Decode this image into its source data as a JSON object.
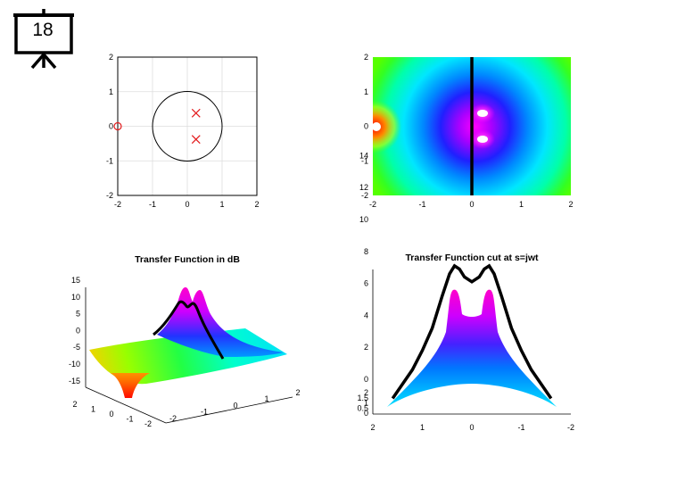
{
  "slide": {
    "number": "18"
  },
  "chart_data": [
    {
      "id": "pole-zero",
      "type": "scatter",
      "title": "",
      "xlabel": "",
      "ylabel": "",
      "xlim": [
        -2,
        2
      ],
      "ylim": [
        -2,
        2
      ],
      "grid": true,
      "xticks": [
        "-2",
        "-1",
        "0",
        "1",
        "2"
      ],
      "yticks": [
        "2",
        "1",
        "0",
        "-1",
        "-2"
      ],
      "unit_circle": true,
      "poles": [
        {
          "re": 0.25,
          "im": 0.38
        },
        {
          "re": 0.25,
          "im": -0.38
        }
      ],
      "zeros": [
        {
          "re": -2,
          "im": 0
        }
      ],
      "colors": {
        "marker": "#e31a1c",
        "circle": "#000000",
        "grid": "#dddddd"
      }
    },
    {
      "id": "s-plane-magnitude",
      "type": "heatmap",
      "title": "",
      "xlim": [
        -2,
        2
      ],
      "ylim": [
        -2,
        2
      ],
      "xticks": [
        "-2",
        "-1",
        "0",
        "1",
        "2"
      ],
      "yticks": [
        "2",
        "1",
        "0",
        "-1",
        "-2"
      ],
      "colormap": "hsv",
      "jw_axis_line": {
        "re": 0
      }
    },
    {
      "id": "transfer-function-db",
      "type": "area",
      "title": "Transfer Function in dB",
      "view": "3d",
      "zticks": [
        "15",
        "10",
        "5",
        "0",
        "-5",
        "-10",
        "-15"
      ],
      "yticks": [
        "2",
        "1",
        "0",
        "-1",
        "-2"
      ],
      "xticks": [
        "-2",
        "-1",
        "0",
        "1",
        "2"
      ],
      "colormap": "hsv"
    },
    {
      "id": "transfer-function-jw",
      "type": "line",
      "title": "Transfer Function cut at s=jwt",
      "xlim": [
        2,
        -2
      ],
      "xticks": [
        "2",
        "1",
        "0",
        "-1",
        "-2"
      ],
      "yticks": [
        "14",
        "12",
        "10",
        "8",
        "6",
        "4",
        "2",
        "0"
      ],
      "yticks_minor": [
        "2",
        "1.5",
        "1",
        "0.5",
        "0"
      ],
      "series": [
        {
          "x": [
            1.6,
            1.4,
            1.2,
            1.0,
            0.8,
            0.6,
            0.45,
            0.35,
            0.25,
            0.15,
            0,
            -0.15,
            -0.25,
            -0.35,
            -0.45,
            -0.6,
            -0.8,
            -1.0,
            -1.2,
            -1.4,
            -1.6
          ],
          "y": [
            -1.2,
            -0.3,
            0.6,
            1.8,
            3.2,
            5.2,
            6.6,
            7.1,
            6.9,
            6.4,
            6.1,
            6.4,
            6.9,
            7.1,
            6.6,
            5.2,
            3.2,
            1.8,
            0.6,
            -0.3,
            -1.2
          ]
        }
      ]
    }
  ]
}
